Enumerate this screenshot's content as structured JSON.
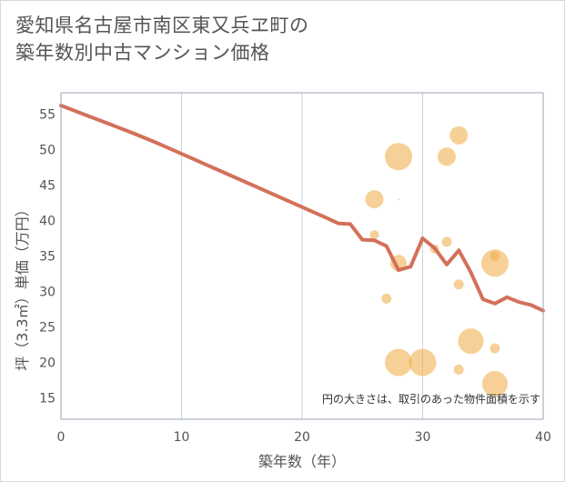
{
  "title": {
    "line1": "愛知県名古屋市南区東又兵ヱ町の",
    "line2": "築年数別中古マンション価格"
  },
  "chart_data": {
    "type": "scatter",
    "title": "愛知県名古屋市南区東又兵ヱ町の築年数別中古マンション価格",
    "xlabel": "築年数（年）",
    "ylabel": "坪（3.3㎡）単価（万円）",
    "xlim": [
      0,
      40
    ],
    "ylim": [
      12,
      58
    ],
    "x_ticks": [
      0,
      10,
      20,
      30,
      40
    ],
    "y_ticks": [
      15,
      20,
      25,
      30,
      35,
      40,
      45,
      50,
      55
    ],
    "grid": "vertical",
    "note": "円の大きさは、取引のあった物件面積を示す",
    "colors": {
      "line": "#d4705a",
      "bubble": "#f0b050",
      "grid": "#c8d4e4",
      "axis": "#9aa6b4"
    },
    "series": [
      {
        "name": "trend",
        "kind": "line",
        "x": [
          0,
          2,
          4,
          6,
          8,
          10,
          12,
          14,
          16,
          18,
          20,
          22,
          23,
          24,
          25,
          26,
          27,
          28,
          29,
          30,
          31,
          32,
          33,
          34,
          35,
          36,
          37,
          38,
          39,
          40
        ],
        "y": [
          56.2,
          54.9,
          53.6,
          52.3,
          50.9,
          49.4,
          47.9,
          46.4,
          44.9,
          43.4,
          41.9,
          40.4,
          39.6,
          39.5,
          37.3,
          37.2,
          36.4,
          33.0,
          33.5,
          37.5,
          36.1,
          33.8,
          35.8,
          32.7,
          28.9,
          28.3,
          29.2,
          28.5,
          28.1,
          27.3
        ]
      },
      {
        "name": "transactions",
        "kind": "bubble",
        "points": [
          {
            "x": 26,
            "y": 43,
            "size": 20
          },
          {
            "x": 26,
            "y": 38,
            "size": 10
          },
          {
            "x": 27,
            "y": 29,
            "size": 11
          },
          {
            "x": 28,
            "y": 49,
            "size": 30
          },
          {
            "x": 28,
            "y": 34,
            "size": 18
          },
          {
            "x": 28,
            "y": 20,
            "size": 30
          },
          {
            "x": 28,
            "y": 43,
            "size": 2
          },
          {
            "x": 30,
            "y": 20,
            "size": 30
          },
          {
            "x": 31,
            "y": 36,
            "size": 10
          },
          {
            "x": 32,
            "y": 49,
            "size": 20
          },
          {
            "x": 32,
            "y": 37,
            "size": 11
          },
          {
            "x": 33,
            "y": 52,
            "size": 20
          },
          {
            "x": 33,
            "y": 31,
            "size": 11
          },
          {
            "x": 33,
            "y": 19,
            "size": 11
          },
          {
            "x": 34,
            "y": 23,
            "size": 28
          },
          {
            "x": 36,
            "y": 34,
            "size": 30
          },
          {
            "x": 36,
            "y": 35,
            "size": 11
          },
          {
            "x": 36,
            "y": 22,
            "size": 11
          },
          {
            "x": 36,
            "y": 17,
            "size": 28
          }
        ]
      }
    ]
  }
}
